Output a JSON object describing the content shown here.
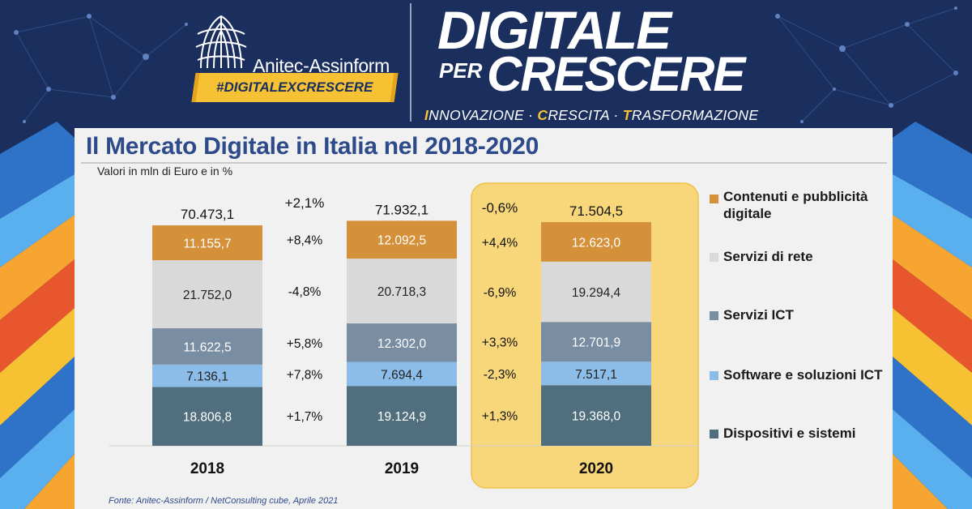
{
  "header": {
    "logo_text": "Anitec-Assinform",
    "hashtag": "#DIGITALEXCRESCERE",
    "headline_1": "DIGITALE",
    "headline_per": "PER",
    "headline_2": "CRESCERE",
    "tagline": [
      {
        "cap": "I",
        "rest": "NNOVAZIONE"
      },
      {
        "sep": " · "
      },
      {
        "cap": "C",
        "rest": "RESCITA"
      },
      {
        "sep": " · "
      },
      {
        "cap": "T",
        "rest": "RASFORMAZIONE"
      }
    ]
  },
  "colors": {
    "background": "#1b2f5e",
    "accent_yellow": "#f6c233",
    "highlight": "#f8d77a"
  },
  "chart_data": {
    "type": "bar",
    "stacked": true,
    "title": "Il Mercato Digitale in Italia nel 2018-2020",
    "subtitle": "Valori in mln di Euro e in %",
    "categories": [
      "2018",
      "2019",
      "2020"
    ],
    "totals": [
      70473.1,
      71932.1,
      71504.5
    ],
    "totals_labels": [
      "70.473,1",
      "71.932,1",
      "71.504,5"
    ],
    "series": [
      {
        "name": "Dispositivi e sistemi",
        "color": "#506e7d",
        "values": [
          18806.8,
          19124.9,
          19368.0
        ],
        "labels": [
          "18.806,8",
          "19.124,9",
          "19.368,0"
        ]
      },
      {
        "name": "Software e soluzioni ICT",
        "color": "#8bbde8",
        "values": [
          7136.1,
          7694.4,
          7517.1
        ],
        "labels": [
          "7.136,1",
          "7.694,4",
          "7.517,1"
        ]
      },
      {
        "name": "Servizi ICT",
        "color": "#7a8ea3",
        "values": [
          11622.5,
          12302.0,
          12701.9
        ],
        "labels": [
          "11.622,5",
          "12.302,0",
          "12.701,9"
        ]
      },
      {
        "name": "Servizi di rete",
        "color": "#d9d9d9",
        "values": [
          21752.0,
          20718.3,
          19294.4
        ],
        "labels": [
          "21.752,0",
          "20.718,3",
          "19.294,4"
        ]
      },
      {
        "name": "Contenuti e pubblicità digitale",
        "color": "#d4913a",
        "values": [
          11155.7,
          12092.5,
          12623.0
        ],
        "labels": [
          "11.155,7",
          "12.092,5",
          "12.623,0"
        ]
      }
    ],
    "growth": [
      {
        "between": [
          "2018",
          "2019"
        ],
        "total": "+2,1%",
        "by_series": [
          "+1,7%",
          "+7,8%",
          "+5,8%",
          "-4,8%",
          "+8,4%"
        ]
      },
      {
        "between": [
          "2019",
          "2020"
        ],
        "total": "-0,6%",
        "by_series": [
          "+1,3%",
          "-2,3%",
          "+3,3%",
          "-6,9%",
          "+4,4%"
        ]
      }
    ],
    "highlighted_category": "2020",
    "legend": {
      "position": "right",
      "items": [
        {
          "label": "Contenuti e pubblicità digitale",
          "color": "#d4913a"
        },
        {
          "label": "Servizi di rete",
          "color": "#d9d9d9"
        },
        {
          "label": "Servizi ICT",
          "color": "#7a8ea3"
        },
        {
          "label": "Software e soluzioni ICT",
          "color": "#8bbde8"
        },
        {
          "label": "Dispositivi e sistemi",
          "color": "#506e7d"
        }
      ]
    },
    "source": "Fonte: Anitec-Assinform / NetConsulting cube, Aprile 2021"
  }
}
